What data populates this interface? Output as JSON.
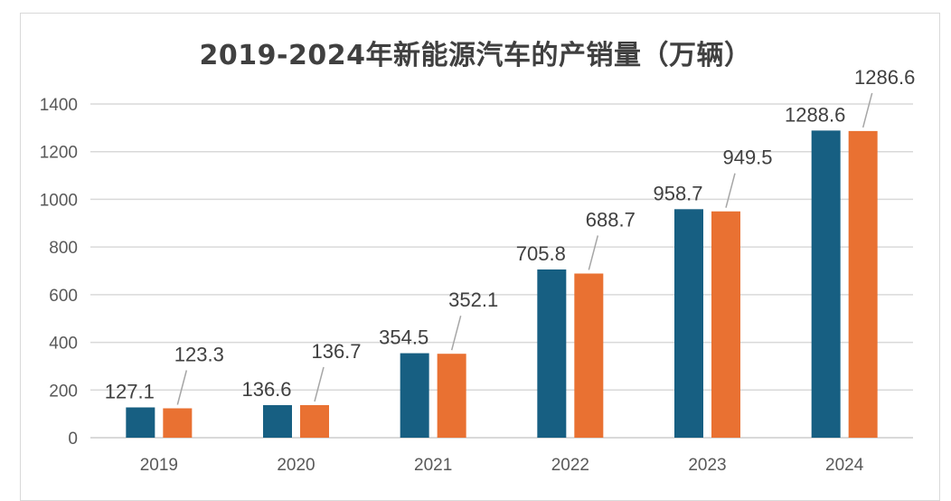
{
  "chart_data": {
    "type": "bar",
    "title": "2019-2024年新能源汽车的产销量（万辆）",
    "categories": [
      "2019",
      "2020",
      "2021",
      "2022",
      "2023",
      "2024"
    ],
    "series": [
      {
        "values": [
          127.1,
          136.6,
          354.5,
          705.8,
          958.7,
          1288.6
        ],
        "color": "#175f82"
      },
      {
        "values": [
          123.3,
          136.7,
          352.1,
          688.7,
          949.5,
          1286.6
        ],
        "color": "#e97132"
      }
    ],
    "ylim": [
      0,
      1400
    ],
    "yticks": [
      0,
      200,
      400,
      600,
      800,
      1000,
      1200,
      1400
    ],
    "grid": true,
    "legend": "none",
    "data_labels": true
  }
}
